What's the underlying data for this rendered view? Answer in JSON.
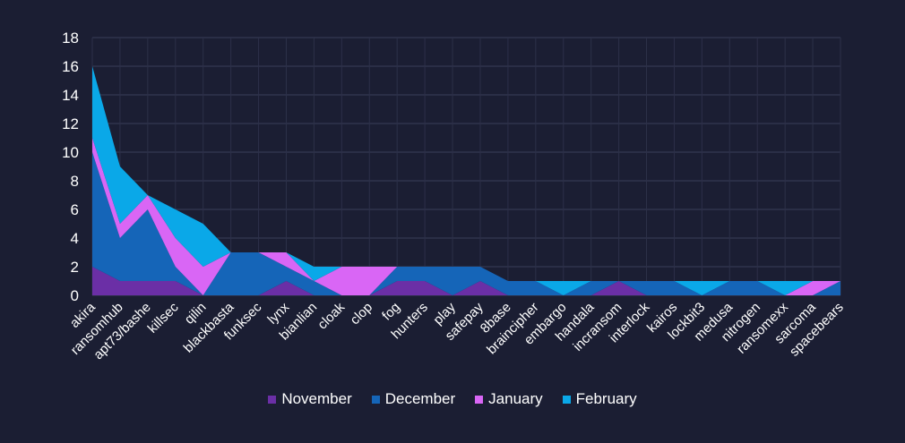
{
  "chart_data": {
    "type": "area",
    "stacked": true,
    "categories": [
      "akira",
      "ransomhub",
      "apt73/bashe",
      "killsec",
      "qilin",
      "blackbasta",
      "funksec",
      "lynx",
      "bianlian",
      "cloak",
      "clop",
      "fog",
      "hunters",
      "play",
      "safepay",
      "8base",
      "braincipher",
      "embargo",
      "handala",
      "incransom",
      "interlock",
      "kairos",
      "lockbit3",
      "medusa",
      "nitrogen",
      "ransomexx",
      "sarcoma",
      "spacebears"
    ],
    "series": [
      {
        "name": "November",
        "color": "#6b2fa6",
        "values": [
          2,
          1,
          1,
          1,
          0,
          0,
          0,
          1,
          0,
          0,
          0,
          1,
          1,
          0,
          1,
          0,
          0,
          0,
          0,
          1,
          0,
          0,
          0,
          0,
          0,
          0,
          0,
          0
        ]
      },
      {
        "name": "December",
        "color": "#1565b8",
        "values": [
          8,
          3,
          5,
          1,
          0,
          3,
          3,
          1,
          1,
          0,
          0,
          1,
          1,
          2,
          1,
          1,
          1,
          0,
          1,
          0,
          1,
          1,
          0,
          1,
          1,
          0,
          0,
          1
        ]
      },
      {
        "name": "January",
        "color": "#d966f5",
        "values": [
          1,
          1,
          1,
          2,
          2,
          0,
          0,
          1,
          0,
          2,
          2,
          0,
          0,
          0,
          0,
          0,
          0,
          0,
          0,
          0,
          0,
          0,
          0,
          0,
          0,
          0,
          1,
          0
        ]
      },
      {
        "name": "February",
        "color": "#0aa8e8",
        "values": [
          5,
          4,
          0,
          2,
          3,
          0,
          0,
          0,
          1,
          0,
          0,
          0,
          0,
          0,
          0,
          0,
          0,
          1,
          0,
          0,
          0,
          0,
          1,
          0,
          0,
          1,
          0,
          0
        ]
      }
    ],
    "ylim": [
      0,
      18
    ],
    "yticks": [
      0,
      2,
      4,
      6,
      8,
      10,
      12,
      14,
      16,
      18
    ],
    "grid": true,
    "legend": "bottom"
  }
}
